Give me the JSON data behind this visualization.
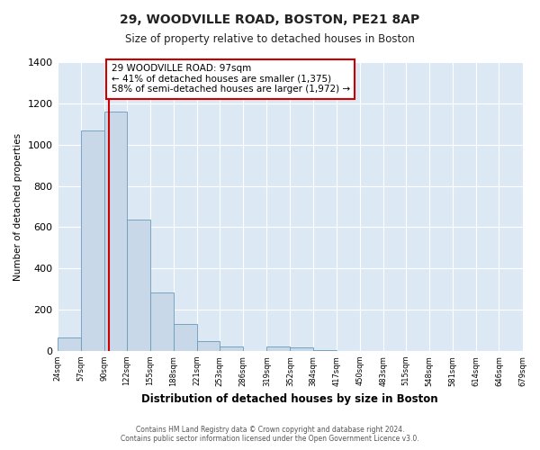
{
  "title": "29, WOODVILLE ROAD, BOSTON, PE21 8AP",
  "subtitle": "Size of property relative to detached houses in Boston",
  "xlabel": "Distribution of detached houses by size in Boston",
  "ylabel": "Number of detached properties",
  "bar_edges": [
    24,
    57,
    90,
    122,
    155,
    188,
    221,
    253,
    286,
    319,
    352,
    384,
    417,
    450,
    483,
    515,
    548,
    581,
    614,
    646,
    679
  ],
  "bar_heights": [
    65,
    1070,
    1160,
    635,
    285,
    130,
    47,
    20,
    0,
    20,
    18,
    3,
    0,
    0,
    0,
    0,
    0,
    0,
    0,
    0
  ],
  "bar_color": "#c8d8e8",
  "bar_edgecolor": "#6a9ab8",
  "vline_x": 97,
  "vline_color": "#cc0000",
  "annotation_text": "29 WOODVILLE ROAD: 97sqm\n← 41% of detached houses are smaller (1,375)\n58% of semi-detached houses are larger (1,972) →",
  "annotation_box_edgecolor": "#cc0000",
  "annotation_box_facecolor": "#ffffff",
  "ylim": [
    0,
    1400
  ],
  "yticks": [
    0,
    200,
    400,
    600,
    800,
    1000,
    1200,
    1400
  ],
  "xtick_labels": [
    "24sqm",
    "57sqm",
    "90sqm",
    "122sqm",
    "155sqm",
    "188sqm",
    "221sqm",
    "253sqm",
    "286sqm",
    "319sqm",
    "352sqm",
    "384sqm",
    "417sqm",
    "450sqm",
    "483sqm",
    "515sqm",
    "548sqm",
    "581sqm",
    "614sqm",
    "646sqm",
    "679sqm"
  ],
  "footer_text": "Contains HM Land Registry data © Crown copyright and database right 2024.\nContains public sector information licensed under the Open Government Licence v3.0.",
  "plot_bg_color": "#dce8f4",
  "fig_bg_color": "#ffffff",
  "grid_color": "#ffffff"
}
